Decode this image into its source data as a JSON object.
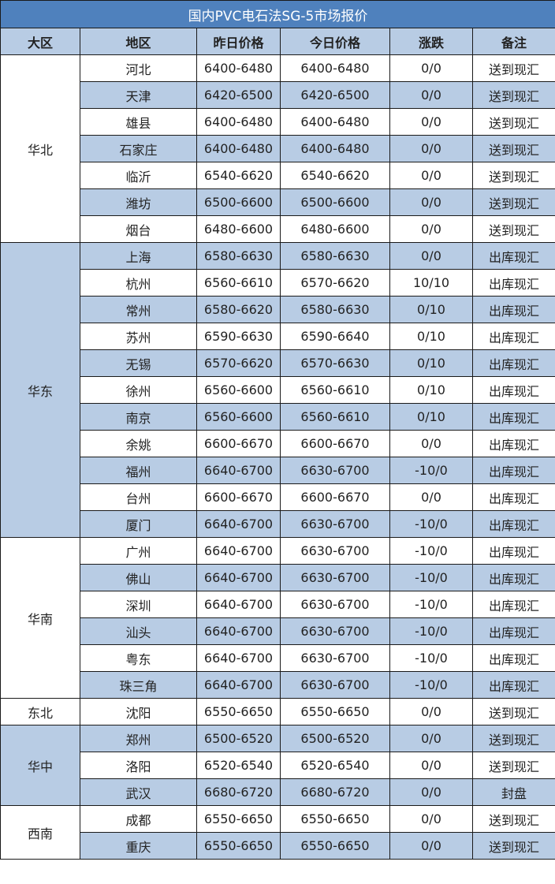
{
  "title": "国内PVC电石法SG-5市场报价",
  "colors": {
    "title_bg": "#4f81bd",
    "band": "#b8cce4"
  },
  "headers": [
    "大区",
    "地区",
    "昨日价格",
    "今日价格",
    "涨跌",
    "备注"
  ],
  "groups": [
    {
      "region": "华北",
      "rows": [
        [
          "河北",
          "6400-6480",
          "6400-6480",
          "0/0",
          "送到现汇"
        ],
        [
          "天津",
          "6420-6500",
          "6420-6500",
          "0/0",
          "送到现汇"
        ],
        [
          "雄县",
          "6400-6480",
          "6400-6480",
          "0/0",
          "送到现汇"
        ],
        [
          "石家庄",
          "6400-6480",
          "6400-6480",
          "0/0",
          "送到现汇"
        ],
        [
          "临沂",
          "6540-6620",
          "6540-6620",
          "0/0",
          "送到现汇"
        ],
        [
          "潍坊",
          "6500-6600",
          "6500-6600",
          "0/0",
          "送到现汇"
        ],
        [
          "烟台",
          "6480-6600",
          "6480-6600",
          "0/0",
          "送到现汇"
        ]
      ]
    },
    {
      "region": "华东",
      "rows": [
        [
          "上海",
          "6580-6630",
          "6580-6630",
          "0/0",
          "出库现汇"
        ],
        [
          "杭州",
          "6560-6610",
          "6570-6620",
          "10/10",
          "出库现汇"
        ],
        [
          "常州",
          "6580-6620",
          "6580-6630",
          "0/10",
          "出库现汇"
        ],
        [
          "苏州",
          "6590-6630",
          "6590-6640",
          "0/10",
          "出库现汇"
        ],
        [
          "无锡",
          "6570-6620",
          "6570-6630",
          "0/10",
          "出库现汇"
        ],
        [
          "徐州",
          "6560-6600",
          "6560-6610",
          "0/10",
          "出库现汇"
        ],
        [
          "南京",
          "6560-6600",
          "6560-6610",
          "0/10",
          "出库现汇"
        ],
        [
          "余姚",
          "6600-6670",
          "6600-6670",
          "0/0",
          "出库现汇"
        ],
        [
          "福州",
          "6640-6700",
          "6630-6700",
          "-10/0",
          "出库现汇"
        ],
        [
          "台州",
          "6600-6670",
          "6600-6670",
          "0/0",
          "出库现汇"
        ],
        [
          "厦门",
          "6640-6700",
          "6630-6700",
          "-10/0",
          "出库现汇"
        ]
      ]
    },
    {
      "region": "华南",
      "rows": [
        [
          "广州",
          "6640-6700",
          "6630-6700",
          "-10/0",
          "出库现汇"
        ],
        [
          "佛山",
          "6640-6700",
          "6630-6700",
          "-10/0",
          "出库现汇"
        ],
        [
          "深圳",
          "6640-6700",
          "6630-6700",
          "-10/0",
          "出库现汇"
        ],
        [
          "汕头",
          "6640-6700",
          "6630-6700",
          "-10/0",
          "出库现汇"
        ],
        [
          "粤东",
          "6640-6700",
          "6630-6700",
          "-10/0",
          "出库现汇"
        ],
        [
          "珠三角",
          "6640-6700",
          "6630-6700",
          "-10/0",
          "出库现汇"
        ]
      ]
    },
    {
      "region": "东北",
      "rows": [
        [
          "沈阳",
          "6550-6650",
          "6550-6650",
          "0/0",
          "送到现汇"
        ]
      ]
    },
    {
      "region": "华中",
      "rows": [
        [
          "郑州",
          "6500-6520",
          "6500-6520",
          "0/0",
          "送到现汇"
        ],
        [
          "洛阳",
          "6520-6540",
          "6520-6540",
          "0/0",
          "送到现汇"
        ],
        [
          "武汉",
          "6680-6720",
          "6680-6720",
          "0/0",
          "封盘"
        ]
      ]
    },
    {
      "region": "西南",
      "rows": [
        [
          "成都",
          "6550-6650",
          "6550-6650",
          "0/0",
          "送到现汇"
        ],
        [
          "重庆",
          "6550-6650",
          "6550-6650",
          "0/0",
          "送到现汇"
        ]
      ]
    }
  ]
}
